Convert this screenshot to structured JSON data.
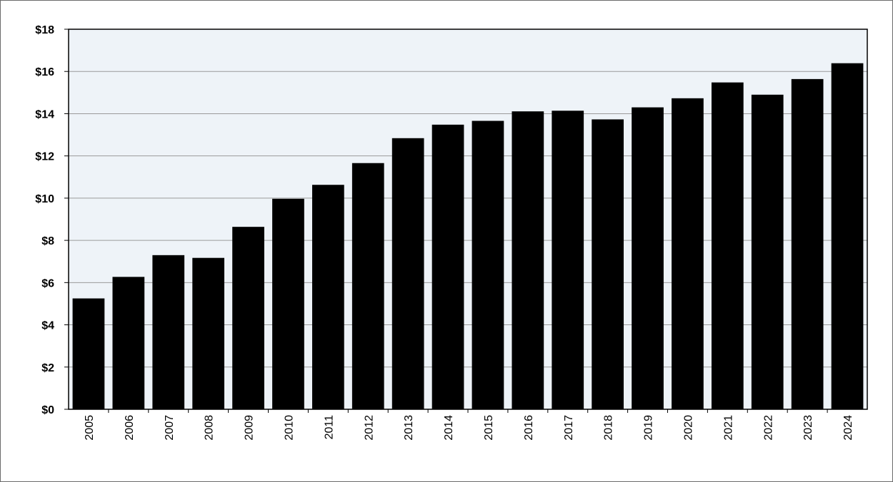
{
  "chart_data": {
    "type": "bar",
    "title": "",
    "xlabel": "",
    "ylabel": "",
    "categories": [
      "2005",
      "2006",
      "2007",
      "2008",
      "2009",
      "2010",
      "2011",
      "2012",
      "2013",
      "2014",
      "2015",
      "2016",
      "2017",
      "2018",
      "2019",
      "2020",
      "2021",
      "2022",
      "2023",
      "2024"
    ],
    "values": [
      5.25,
      6.27,
      7.3,
      7.17,
      8.64,
      9.97,
      10.63,
      11.66,
      12.84,
      13.48,
      13.66,
      14.11,
      14.14,
      13.73,
      14.3,
      14.73,
      15.48,
      14.9,
      15.64,
      16.39
    ],
    "ylim": [
      0,
      18
    ],
    "yticks": [
      0,
      2,
      4,
      6,
      8,
      10,
      12,
      14,
      16,
      18
    ],
    "ytick_labels": [
      "$0",
      "$2",
      "$4",
      "$6",
      "$8",
      "$10",
      "$12",
      "$14",
      "$16",
      "$18"
    ],
    "grid": true,
    "legend": "none",
    "colors": {
      "bar": "#000000",
      "plot_background": "#eef3f8",
      "gridline": "#9a9a9a",
      "axis": "#000000",
      "frame": "#6b6b6b"
    }
  }
}
